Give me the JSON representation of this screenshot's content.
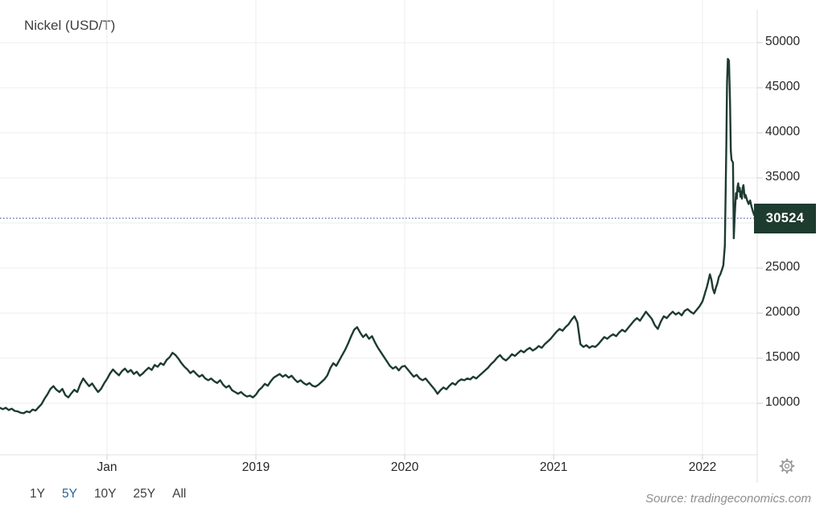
{
  "chart_data": {
    "type": "line",
    "title": "Nickel (USD/T)",
    "unit": "USD/T",
    "current": {
      "value": "30524",
      "numeric": 30524
    },
    "colors": {
      "line": "#1d3b31",
      "badge_bg": "#1e3b2f",
      "badge_text": "#ffffff",
      "dotted": "#4a5f9e",
      "grid": "#ededed",
      "axis": "#e0e0e0",
      "tick": "#cfcfcf",
      "active_range": "#2a6496"
    },
    "y_axis": {
      "tick_labels": [
        "50000",
        "45000",
        "40000",
        "35000",
        "25000",
        "20000",
        "15000",
        "10000"
      ],
      "grid_values": [
        50000,
        45000,
        40000,
        35000,
        30000,
        25000,
        20000,
        15000,
        10000
      ],
      "range": [
        10000,
        50000
      ]
    },
    "x_axis": {
      "ticks": [
        {
          "label": "Jan",
          "t": 2018
        },
        {
          "label": "2019",
          "t": 2019
        },
        {
          "label": "2020",
          "t": 2020
        },
        {
          "label": "2021",
          "t": 2021
        },
        {
          "label": "2022",
          "t": 2022
        }
      ],
      "range": [
        2017.28,
        2022.37
      ]
    },
    "series": {
      "name": "Nickel price (USD/T)",
      "points": [
        [
          2017.28,
          9500
        ],
        [
          2017.3,
          9350
        ],
        [
          2017.32,
          9500
        ],
        [
          2017.34,
          9250
        ],
        [
          2017.36,
          9400
        ],
        [
          2017.38,
          9150
        ],
        [
          2017.4,
          9100
        ],
        [
          2017.42,
          8950
        ],
        [
          2017.44,
          8900
        ],
        [
          2017.46,
          9100
        ],
        [
          2017.48,
          9000
        ],
        [
          2017.5,
          9300
        ],
        [
          2017.52,
          9200
        ],
        [
          2017.54,
          9550
        ],
        [
          2017.56,
          9900
        ],
        [
          2017.58,
          10500
        ],
        [
          2017.6,
          11000
        ],
        [
          2017.62,
          11600
        ],
        [
          2017.64,
          11900
        ],
        [
          2017.66,
          11500
        ],
        [
          2017.68,
          11250
        ],
        [
          2017.7,
          11600
        ],
        [
          2017.72,
          10900
        ],
        [
          2017.74,
          10650
        ],
        [
          2017.76,
          11100
        ],
        [
          2017.78,
          11500
        ],
        [
          2017.8,
          11250
        ],
        [
          2017.82,
          12100
        ],
        [
          2017.84,
          12750
        ],
        [
          2017.86,
          12300
        ],
        [
          2017.88,
          11900
        ],
        [
          2017.9,
          12200
        ],
        [
          2017.92,
          11700
        ],
        [
          2017.94,
          11250
        ],
        [
          2017.96,
          11600
        ],
        [
          2017.98,
          12200
        ],
        [
          2018.0,
          12700
        ],
        [
          2018.02,
          13300
        ],
        [
          2018.04,
          13750
        ],
        [
          2018.06,
          13400
        ],
        [
          2018.08,
          13100
        ],
        [
          2018.1,
          13550
        ],
        [
          2018.12,
          13850
        ],
        [
          2018.14,
          13450
        ],
        [
          2018.16,
          13700
        ],
        [
          2018.18,
          13250
        ],
        [
          2018.2,
          13500
        ],
        [
          2018.22,
          13050
        ],
        [
          2018.24,
          13300
        ],
        [
          2018.26,
          13650
        ],
        [
          2018.28,
          13950
        ],
        [
          2018.3,
          13700
        ],
        [
          2018.32,
          14250
        ],
        [
          2018.34,
          14050
        ],
        [
          2018.36,
          14450
        ],
        [
          2018.38,
          14250
        ],
        [
          2018.4,
          14800
        ],
        [
          2018.42,
          15100
        ],
        [
          2018.44,
          15600
        ],
        [
          2018.46,
          15350
        ],
        [
          2018.48,
          14950
        ],
        [
          2018.5,
          14450
        ],
        [
          2018.52,
          14050
        ],
        [
          2018.54,
          13750
        ],
        [
          2018.56,
          13350
        ],
        [
          2018.58,
          13600
        ],
        [
          2018.6,
          13250
        ],
        [
          2018.62,
          12950
        ],
        [
          2018.64,
          13150
        ],
        [
          2018.66,
          12750
        ],
        [
          2018.68,
          12550
        ],
        [
          2018.7,
          12750
        ],
        [
          2018.72,
          12450
        ],
        [
          2018.74,
          12250
        ],
        [
          2018.76,
          12550
        ],
        [
          2018.78,
          12050
        ],
        [
          2018.8,
          11750
        ],
        [
          2018.82,
          11950
        ],
        [
          2018.84,
          11450
        ],
        [
          2018.86,
          11250
        ],
        [
          2018.88,
          11050
        ],
        [
          2018.9,
          11250
        ],
        [
          2018.92,
          10950
        ],
        [
          2018.94,
          10750
        ],
        [
          2018.96,
          10850
        ],
        [
          2018.98,
          10650
        ],
        [
          2019.0,
          10950
        ],
        [
          2019.02,
          11450
        ],
        [
          2019.04,
          11750
        ],
        [
          2019.06,
          12150
        ],
        [
          2019.08,
          11950
        ],
        [
          2019.1,
          12450
        ],
        [
          2019.12,
          12850
        ],
        [
          2019.14,
          13050
        ],
        [
          2019.16,
          13250
        ],
        [
          2019.18,
          12950
        ],
        [
          2019.2,
          13150
        ],
        [
          2019.22,
          12850
        ],
        [
          2019.24,
          13050
        ],
        [
          2019.26,
          12650
        ],
        [
          2019.28,
          12350
        ],
        [
          2019.3,
          12550
        ],
        [
          2019.32,
          12250
        ],
        [
          2019.34,
          12050
        ],
        [
          2019.36,
          12250
        ],
        [
          2019.38,
          11950
        ],
        [
          2019.4,
          11850
        ],
        [
          2019.42,
          12050
        ],
        [
          2019.44,
          12350
        ],
        [
          2019.46,
          12650
        ],
        [
          2019.48,
          13100
        ],
        [
          2019.5,
          13900
        ],
        [
          2019.52,
          14450
        ],
        [
          2019.54,
          14150
        ],
        [
          2019.56,
          14750
        ],
        [
          2019.58,
          15350
        ],
        [
          2019.6,
          15950
        ],
        [
          2019.62,
          16650
        ],
        [
          2019.64,
          17450
        ],
        [
          2019.66,
          18150
        ],
        [
          2019.68,
          18450
        ],
        [
          2019.7,
          17850
        ],
        [
          2019.72,
          17350
        ],
        [
          2019.74,
          17650
        ],
        [
          2019.76,
          17150
        ],
        [
          2019.78,
          17450
        ],
        [
          2019.8,
          16750
        ],
        [
          2019.82,
          16150
        ],
        [
          2019.84,
          15650
        ],
        [
          2019.86,
          15150
        ],
        [
          2019.88,
          14650
        ],
        [
          2019.9,
          14150
        ],
        [
          2019.92,
          13850
        ],
        [
          2019.94,
          14050
        ],
        [
          2019.96,
          13650
        ],
        [
          2019.98,
          14050
        ],
        [
          2020.0,
          14150
        ],
        [
          2020.02,
          13750
        ],
        [
          2020.04,
          13350
        ],
        [
          2020.06,
          12950
        ],
        [
          2020.08,
          13150
        ],
        [
          2020.1,
          12750
        ],
        [
          2020.12,
          12550
        ],
        [
          2020.14,
          12750
        ],
        [
          2020.16,
          12350
        ],
        [
          2020.18,
          11950
        ],
        [
          2020.2,
          11550
        ],
        [
          2020.22,
          11050
        ],
        [
          2020.24,
          11450
        ],
        [
          2020.26,
          11750
        ],
        [
          2020.28,
          11550
        ],
        [
          2020.3,
          11950
        ],
        [
          2020.32,
          12250
        ],
        [
          2020.34,
          12050
        ],
        [
          2020.36,
          12450
        ],
        [
          2020.38,
          12650
        ],
        [
          2020.4,
          12550
        ],
        [
          2020.42,
          12750
        ],
        [
          2020.44,
          12650
        ],
        [
          2020.46,
          12950
        ],
        [
          2020.48,
          12750
        ],
        [
          2020.5,
          13050
        ],
        [
          2020.52,
          13350
        ],
        [
          2020.54,
          13650
        ],
        [
          2020.56,
          13950
        ],
        [
          2020.58,
          14350
        ],
        [
          2020.6,
          14650
        ],
        [
          2020.62,
          15050
        ],
        [
          2020.64,
          15350
        ],
        [
          2020.66,
          14950
        ],
        [
          2020.68,
          14750
        ],
        [
          2020.7,
          15050
        ],
        [
          2020.72,
          15450
        ],
        [
          2020.74,
          15250
        ],
        [
          2020.76,
          15550
        ],
        [
          2020.78,
          15850
        ],
        [
          2020.8,
          15650
        ],
        [
          2020.82,
          15950
        ],
        [
          2020.84,
          16150
        ],
        [
          2020.86,
          15850
        ],
        [
          2020.88,
          16050
        ],
        [
          2020.9,
          16350
        ],
        [
          2020.92,
          16150
        ],
        [
          2020.94,
          16550
        ],
        [
          2020.96,
          16850
        ],
        [
          2020.98,
          17150
        ],
        [
          2021.0,
          17550
        ],
        [
          2021.02,
          17950
        ],
        [
          2021.04,
          18250
        ],
        [
          2021.06,
          18050
        ],
        [
          2021.08,
          18450
        ],
        [
          2021.1,
          18750
        ],
        [
          2021.12,
          19250
        ],
        [
          2021.14,
          19650
        ],
        [
          2021.16,
          18950
        ],
        [
          2021.18,
          16550
        ],
        [
          2021.2,
          16250
        ],
        [
          2021.22,
          16450
        ],
        [
          2021.24,
          16150
        ],
        [
          2021.26,
          16350
        ],
        [
          2021.28,
          16250
        ],
        [
          2021.3,
          16550
        ],
        [
          2021.32,
          16950
        ],
        [
          2021.34,
          17350
        ],
        [
          2021.36,
          17150
        ],
        [
          2021.38,
          17450
        ],
        [
          2021.4,
          17650
        ],
        [
          2021.42,
          17450
        ],
        [
          2021.44,
          17850
        ],
        [
          2021.46,
          18150
        ],
        [
          2021.48,
          17950
        ],
        [
          2021.5,
          18350
        ],
        [
          2021.52,
          18750
        ],
        [
          2021.54,
          19150
        ],
        [
          2021.56,
          19450
        ],
        [
          2021.58,
          19150
        ],
        [
          2021.6,
          19650
        ],
        [
          2021.62,
          20150
        ],
        [
          2021.64,
          19750
        ],
        [
          2021.66,
          19350
        ],
        [
          2021.68,
          18650
        ],
        [
          2021.7,
          18250
        ],
        [
          2021.72,
          19050
        ],
        [
          2021.74,
          19650
        ],
        [
          2021.76,
          19450
        ],
        [
          2021.78,
          19850
        ],
        [
          2021.8,
          20150
        ],
        [
          2021.82,
          19850
        ],
        [
          2021.84,
          20050
        ],
        [
          2021.86,
          19750
        ],
        [
          2021.88,
          20250
        ],
        [
          2021.9,
          20450
        ],
        [
          2021.92,
          20150
        ],
        [
          2021.94,
          19950
        ],
        [
          2021.96,
          20350
        ],
        [
          2021.98,
          20750
        ],
        [
          2022.0,
          21300
        ],
        [
          2022.01,
          21800
        ],
        [
          2022.02,
          22400
        ],
        [
          2022.03,
          22900
        ],
        [
          2022.04,
          23600
        ],
        [
          2022.05,
          24300
        ],
        [
          2022.06,
          23700
        ],
        [
          2022.07,
          22700
        ],
        [
          2022.08,
          22200
        ],
        [
          2022.09,
          22800
        ],
        [
          2022.1,
          23300
        ],
        [
          2022.11,
          24000
        ],
        [
          2022.12,
          24300
        ],
        [
          2022.13,
          24800
        ],
        [
          2022.14,
          25300
        ],
        [
          2022.15,
          27500
        ],
        [
          2022.16,
          38500
        ],
        [
          2022.165,
          45500
        ],
        [
          2022.17,
          48200
        ],
        [
          2022.178,
          48000
        ],
        [
          2022.185,
          43500
        ],
        [
          2022.19,
          38000
        ],
        [
          2022.195,
          37000
        ],
        [
          2022.205,
          36700
        ],
        [
          2022.21,
          28300
        ],
        [
          2022.215,
          30300
        ],
        [
          2022.22,
          31900
        ],
        [
          2022.225,
          33300
        ],
        [
          2022.23,
          32700
        ],
        [
          2022.235,
          34000
        ],
        [
          2022.24,
          34400
        ],
        [
          2022.245,
          33500
        ],
        [
          2022.25,
          33900
        ],
        [
          2022.255,
          32900
        ],
        [
          2022.26,
          33500
        ],
        [
          2022.265,
          32700
        ],
        [
          2022.27,
          33900
        ],
        [
          2022.275,
          34200
        ],
        [
          2022.28,
          33400
        ],
        [
          2022.285,
          32800
        ],
        [
          2022.29,
          33100
        ],
        [
          2022.3,
          32500
        ],
        [
          2022.31,
          32100
        ],
        [
          2022.32,
          32500
        ],
        [
          2022.33,
          31800
        ],
        [
          2022.34,
          31200
        ],
        [
          2022.35,
          30800
        ],
        [
          2022.365,
          30524
        ]
      ]
    },
    "range_buttons": [
      {
        "label": "1Y",
        "active": false
      },
      {
        "label": "5Y",
        "active": true
      },
      {
        "label": "10Y",
        "active": false
      },
      {
        "label": "25Y",
        "active": false
      },
      {
        "label": "All",
        "active": false
      }
    ],
    "source": {
      "text": "Source: tradingeconomics.com"
    },
    "icons": {
      "settings": "gear-icon"
    },
    "legend": {
      "visible": false
    },
    "grid": true
  }
}
